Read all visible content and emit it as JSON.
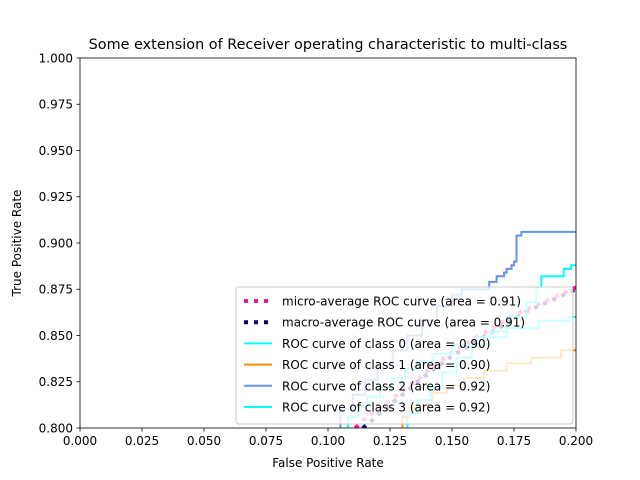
{
  "chart_data": {
    "type": "line",
    "title": "Some extension of Receiver operating characteristic to multi-class",
    "xlabel": "False Positive Rate",
    "ylabel": "True Positive Rate",
    "xlim": [
      0.0,
      0.2
    ],
    "ylim": [
      0.8,
      1.0
    ],
    "xticks": [
      "0.000",
      "0.025",
      "0.050",
      "0.075",
      "0.100",
      "0.125",
      "0.150",
      "0.175",
      "0.200"
    ],
    "yticks": [
      "0.800",
      "0.825",
      "0.850",
      "0.875",
      "0.900",
      "0.925",
      "0.950",
      "0.975",
      "1.000"
    ],
    "grid": false,
    "legend_position": "lower right",
    "series": [
      {
        "name": "micro-average ROC curve (area = 0.91)",
        "color": "#ff1493",
        "style": "dotted",
        "width": 4,
        "x": [
          0.111,
          0.114,
          0.118,
          0.122,
          0.126,
          0.13,
          0.134,
          0.138,
          0.142,
          0.146,
          0.15,
          0.155,
          0.16,
          0.165,
          0.17,
          0.175,
          0.18,
          0.185,
          0.19,
          0.195,
          0.2
        ],
        "y": [
          0.8,
          0.804,
          0.808,
          0.812,
          0.816,
          0.82,
          0.824,
          0.828,
          0.833,
          0.837,
          0.841,
          0.845,
          0.849,
          0.853,
          0.857,
          0.861,
          0.864,
          0.867,
          0.87,
          0.873,
          0.876
        ]
      },
      {
        "name": "macro-average ROC curve (area = 0.91)",
        "color": "#000080",
        "style": "dotted",
        "width": 4,
        "x": [
          0.114,
          0.117,
          0.12,
          0.124,
          0.128,
          0.132,
          0.136,
          0.14,
          0.145,
          0.15,
          0.155,
          0.16,
          0.165,
          0.17,
          0.175,
          0.18,
          0.185,
          0.19,
          0.195,
          0.2
        ],
        "y": [
          0.8,
          0.803,
          0.807,
          0.811,
          0.816,
          0.82,
          0.825,
          0.829,
          0.834,
          0.839,
          0.843,
          0.847,
          0.851,
          0.855,
          0.859,
          0.863,
          0.866,
          0.869,
          0.872,
          0.875
        ]
      },
      {
        "name": "ROC curve of class 0 (area = 0.90)",
        "color": "#00ffff",
        "style": "solid",
        "width": 2,
        "x": [
          0.108,
          0.108,
          0.112,
          0.112,
          0.116,
          0.116,
          0.121,
          0.121,
          0.126,
          0.126,
          0.131,
          0.131,
          0.136,
          0.136,
          0.142,
          0.142,
          0.15,
          0.15,
          0.16,
          0.16,
          0.172,
          0.172,
          0.185,
          0.185,
          0.197,
          0.197,
          0.2
        ],
        "y": [
          0.8,
          0.806,
          0.806,
          0.812,
          0.812,
          0.817,
          0.817,
          0.822,
          0.822,
          0.827,
          0.827,
          0.832,
          0.832,
          0.836,
          0.836,
          0.84,
          0.84,
          0.845,
          0.845,
          0.849,
          0.849,
          0.854,
          0.854,
          0.858,
          0.858,
          0.86,
          0.86
        ]
      },
      {
        "name": "ROC curve of class 1 (area = 0.90)",
        "color": "#ff8c00",
        "style": "solid",
        "width": 2,
        "x": [
          0.13,
          0.13,
          0.133,
          0.133,
          0.137,
          0.137,
          0.142,
          0.142,
          0.148,
          0.148,
          0.155,
          0.155,
          0.163,
          0.163,
          0.172,
          0.172,
          0.182,
          0.182,
          0.194,
          0.194,
          0.2
        ],
        "y": [
          0.8,
          0.806,
          0.806,
          0.811,
          0.811,
          0.815,
          0.815,
          0.819,
          0.819,
          0.823,
          0.823,
          0.827,
          0.827,
          0.831,
          0.831,
          0.835,
          0.835,
          0.838,
          0.838,
          0.842,
          0.842
        ]
      },
      {
        "name": "ROC curve of class 2 (area = 0.92)",
        "color": "#6495ed",
        "style": "solid",
        "width": 2,
        "x": [
          0.105,
          0.105,
          0.11,
          0.11,
          0.115,
          0.115,
          0.12,
          0.12,
          0.126,
          0.126,
          0.132,
          0.132,
          0.138,
          0.138,
          0.144,
          0.144,
          0.15,
          0.15,
          0.154,
          0.154,
          0.165,
          0.165,
          0.168,
          0.168,
          0.171,
          0.171,
          0.172,
          0.172,
          0.174,
          0.174,
          0.175,
          0.175,
          0.176,
          0.176,
          0.178,
          0.178,
          0.19,
          0.19,
          0.2
        ],
        "y": [
          0.8,
          0.81,
          0.81,
          0.818,
          0.818,
          0.826,
          0.826,
          0.834,
          0.834,
          0.842,
          0.842,
          0.85,
          0.85,
          0.858,
          0.858,
          0.866,
          0.866,
          0.872,
          0.872,
          0.875,
          0.875,
          0.879,
          0.879,
          0.882,
          0.882,
          0.884,
          0.884,
          0.886,
          0.886,
          0.888,
          0.888,
          0.89,
          0.89,
          0.904,
          0.904,
          0.906,
          0.906,
          0.906,
          0.906
        ]
      },
      {
        "name": "ROC curve of class 3 (area = 0.92)",
        "color": "#00ffff",
        "style": "solid",
        "width": 2,
        "x": [
          0.132,
          0.132,
          0.136,
          0.136,
          0.141,
          0.141,
          0.146,
          0.146,
          0.152,
          0.152,
          0.158,
          0.158,
          0.165,
          0.165,
          0.172,
          0.172,
          0.18,
          0.18,
          0.184,
          0.184,
          0.186,
          0.186,
          0.195,
          0.195,
          0.198,
          0.198,
          0.2
        ],
        "y": [
          0.8,
          0.808,
          0.808,
          0.815,
          0.815,
          0.822,
          0.822,
          0.83,
          0.83,
          0.838,
          0.838,
          0.845,
          0.845,
          0.852,
          0.852,
          0.86,
          0.86,
          0.868,
          0.868,
          0.876,
          0.876,
          0.882,
          0.882,
          0.886,
          0.886,
          0.888,
          0.888
        ]
      }
    ]
  }
}
